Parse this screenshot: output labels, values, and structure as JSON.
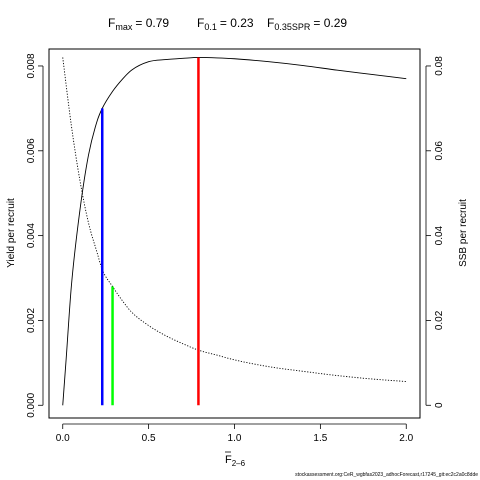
{
  "chart_data": {
    "type": "line",
    "title_parts": {
      "fmax_label": "max",
      "fmax_value": "= 0.79",
      "f01_label": "0.1",
      "f01_value": "= 0.23",
      "fspr_label": "0.35SPR",
      "fspr_value": "= 0.29"
    },
    "xlabel_sub": "2–6",
    "ylabel_left": "Yield per recruit",
    "ylabel_right": "SSB per recruit",
    "xlim": [
      -0.08,
      2.08
    ],
    "ylim_left": [
      -0.0003,
      0.0084
    ],
    "ylim_right": [
      -0.003,
      0.084
    ],
    "x_ticks": [
      0,
      0.5,
      1,
      1.5,
      2
    ],
    "x_tick_labels": [
      "0.0",
      "0.5",
      "1.0",
      "1.5",
      "2.0"
    ],
    "y_left_ticks": [
      0,
      0.002,
      0.004,
      0.006,
      0.008
    ],
    "y_left_tick_labels": [
      "0.000",
      "0.002",
      "0.004",
      "0.006",
      "0.008"
    ],
    "y_right_ticks": [
      0,
      0.02,
      0.04,
      0.06,
      0.08
    ],
    "y_right_tick_labels": [
      "0",
      "0.02",
      "0.04",
      "0.06",
      "0.08"
    ],
    "series": [
      {
        "axis": "left",
        "style": "solid",
        "x": [
          0,
          0.02,
          0.05,
          0.1,
          0.15,
          0.2,
          0.23,
          0.29,
          0.35,
          0.4,
          0.5,
          0.6,
          0.7,
          0.79,
          0.9,
          1.0,
          1.2,
          1.4,
          1.6,
          1.8,
          2.0
        ],
        "y": [
          0,
          0.0011,
          0.0028,
          0.0046,
          0.0059,
          0.0067,
          0.007,
          0.0074,
          0.0077,
          0.0079,
          0.0081,
          0.00815,
          0.00818,
          0.0082,
          0.00819,
          0.00817,
          0.0081,
          0.00801,
          0.0079,
          0.0078,
          0.0077
        ]
      },
      {
        "axis": "right",
        "style": "dotted",
        "x": [
          0,
          0.05,
          0.1,
          0.15,
          0.2,
          0.23,
          0.29,
          0.35,
          0.4,
          0.5,
          0.6,
          0.7,
          0.79,
          0.9,
          1.0,
          1.2,
          1.4,
          1.6,
          1.8,
          2.0
        ],
        "y": [
          0.082,
          0.066,
          0.053,
          0.043,
          0.036,
          0.032,
          0.028,
          0.0245,
          0.022,
          0.0188,
          0.0164,
          0.0145,
          0.013,
          0.0118,
          0.0107,
          0.0091,
          0.008,
          0.007,
          0.0062,
          0.0056
        ]
      }
    ],
    "reference_lines": [
      {
        "x": 0.23,
        "y": 0.007,
        "color": "#0000ff"
      },
      {
        "x": 0.29,
        "y": 0.0028,
        "color": "#00ff00"
      },
      {
        "x": 0.79,
        "y": 0.0082,
        "color": "#ff0000"
      }
    ]
  },
  "footer": {
    "credit": "stockassessment.org:CeR_wgbfas2023_adhocForecast,r17245_git:ec2c2a0c8dde"
  }
}
